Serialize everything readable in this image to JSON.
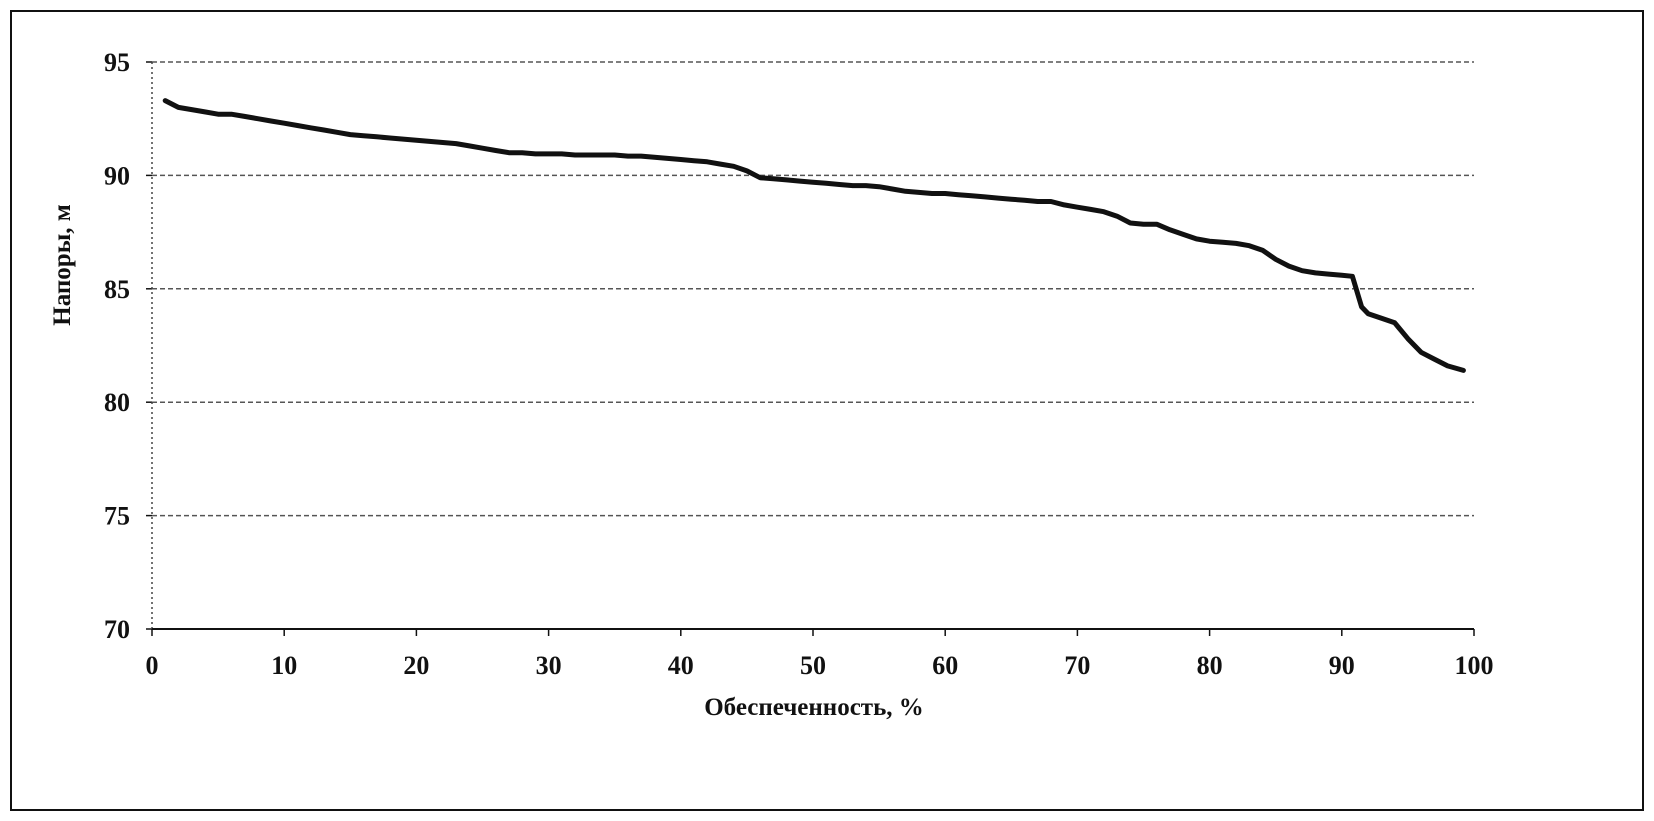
{
  "chart_data": {
    "type": "line",
    "xlabel": "Обеспеченность, %",
    "ylabel": "Напоры, м",
    "xlim": [
      0,
      100
    ],
    "ylim": [
      70,
      95
    ],
    "x_ticks": [
      "0",
      "10",
      "20",
      "30",
      "40",
      "50",
      "60",
      "70",
      "80",
      "90",
      "100"
    ],
    "y_ticks": [
      "95",
      "90",
      "85",
      "80",
      "75",
      "70"
    ],
    "grid": "horizontal dashed",
    "legend": "none",
    "colors": {
      "line": "#111111",
      "grid": "#555555"
    },
    "series": [
      {
        "x": [
          1,
          2,
          3,
          4,
          5,
          6,
          7,
          8,
          9,
          10,
          11,
          12,
          13,
          14,
          15,
          16,
          17,
          18,
          19,
          20,
          21,
          22,
          23,
          24,
          25,
          26,
          27,
          28,
          29,
          30,
          31,
          32,
          33,
          34,
          35,
          36,
          37,
          38,
          39,
          40,
          41,
          42,
          43,
          44,
          45,
          46,
          47,
          48,
          49,
          50,
          51,
          52,
          53,
          54,
          55,
          56,
          57,
          58,
          59,
          60,
          61,
          62,
          63,
          64,
          65,
          66,
          67,
          68,
          69,
          70,
          71,
          72,
          73,
          74,
          75,
          76,
          77,
          78,
          79,
          80,
          81,
          82,
          83,
          84,
          85,
          86,
          87,
          88,
          89,
          90,
          90.8,
          91.5,
          92,
          93,
          94,
          95,
          96,
          97,
          98,
          99.2
        ],
        "y": [
          93.3,
          93.0,
          92.9,
          92.8,
          92.7,
          92.7,
          92.6,
          92.5,
          92.4,
          92.3,
          92.2,
          92.1,
          92.0,
          91.9,
          91.8,
          91.75,
          91.7,
          91.65,
          91.6,
          91.55,
          91.5,
          91.45,
          91.4,
          91.3,
          91.2,
          91.1,
          91.0,
          91.0,
          90.95,
          90.95,
          90.95,
          90.9,
          90.9,
          90.9,
          90.9,
          90.85,
          90.85,
          90.8,
          90.75,
          90.7,
          90.65,
          90.6,
          90.5,
          90.4,
          90.2,
          89.9,
          89.85,
          89.8,
          89.75,
          89.7,
          89.65,
          89.6,
          89.55,
          89.55,
          89.5,
          89.4,
          89.3,
          89.25,
          89.2,
          89.2,
          89.15,
          89.1,
          89.05,
          89.0,
          88.95,
          88.9,
          88.85,
          88.85,
          88.7,
          88.6,
          88.5,
          88.4,
          88.2,
          87.9,
          87.85,
          87.85,
          87.6,
          87.4,
          87.2,
          87.1,
          87.05,
          87.0,
          86.9,
          86.7,
          86.3,
          86.0,
          85.8,
          85.7,
          85.65,
          85.6,
          85.55,
          84.2,
          83.9,
          83.7,
          83.5,
          82.8,
          82.2,
          81.9,
          81.6,
          81.4
        ]
      }
    ]
  }
}
